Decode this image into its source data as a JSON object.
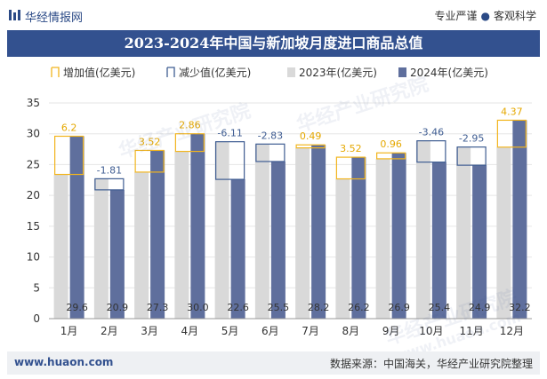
{
  "header": {
    "brand": "华经情报网",
    "tagline_left": "专业严谨",
    "tagline_right": "客观科学",
    "title": "2023-2024年中国与新加坡月度进口商品总值"
  },
  "footer": {
    "site": "www.huaon.com",
    "source": "数据来源：中国海关，华经产业研究院整理"
  },
  "watermarks": [
    "华经产业研究院",
    "华经产业研究院",
    "华经产业研究院",
    "www.huaon.com"
  ],
  "colors": {
    "bar_2023": "#d9d9d9",
    "bar_2024": "#5f6f9d",
    "increase": "#f2b51e",
    "decrease": "#3f5d92",
    "increase_label": "#e5a800",
    "decrease_label": "#3f5d92",
    "title_bg": "#33518f"
  },
  "chart_data": {
    "type": "bar",
    "categories": [
      "1月",
      "2月",
      "3月",
      "4月",
      "5月",
      "6月",
      "7月",
      "8月",
      "9月",
      "10月",
      "11月",
      "12月"
    ],
    "series": [
      {
        "name": "2023年(亿美元)",
        "values": [
          23.4,
          22.7,
          23.78,
          27.14,
          28.71,
          28.33,
          27.71,
          22.68,
          25.94,
          28.86,
          27.85,
          27.83
        ]
      },
      {
        "name": "2024年(亿美元)",
        "values": [
          29.6,
          20.9,
          27.3,
          30.0,
          22.6,
          25.5,
          28.2,
          26.2,
          26.9,
          25.4,
          24.9,
          32.2
        ]
      }
    ],
    "change": [
      6.2,
      -1.81,
      3.52,
      2.86,
      -6.11,
      -2.83,
      0.49,
      3.52,
      0.96,
      -3.46,
      -2.95,
      4.37
    ],
    "change_labels": [
      "6.2",
      "-1.81",
      "3.52",
      "2.86",
      "-6.11",
      "-2.83",
      "0.49",
      "3.52",
      "0.96",
      "-3.46",
      "-2.95",
      "4.37"
    ],
    "value_labels_2024": [
      "29.6",
      "20.9",
      "27.3",
      "30.0",
      "22.6",
      "25.5",
      "28.2",
      "26.2",
      "26.9",
      "25.4",
      "24.9",
      "32.2"
    ],
    "legend": [
      "增加值(亿美元)",
      "减少值(亿美元)",
      "2023年(亿美元)",
      "2024年(亿美元)"
    ],
    "yticks": [
      0,
      5,
      10,
      15,
      20,
      25,
      30,
      35
    ],
    "ylim": [
      0,
      35
    ],
    "legend_position": "top"
  }
}
